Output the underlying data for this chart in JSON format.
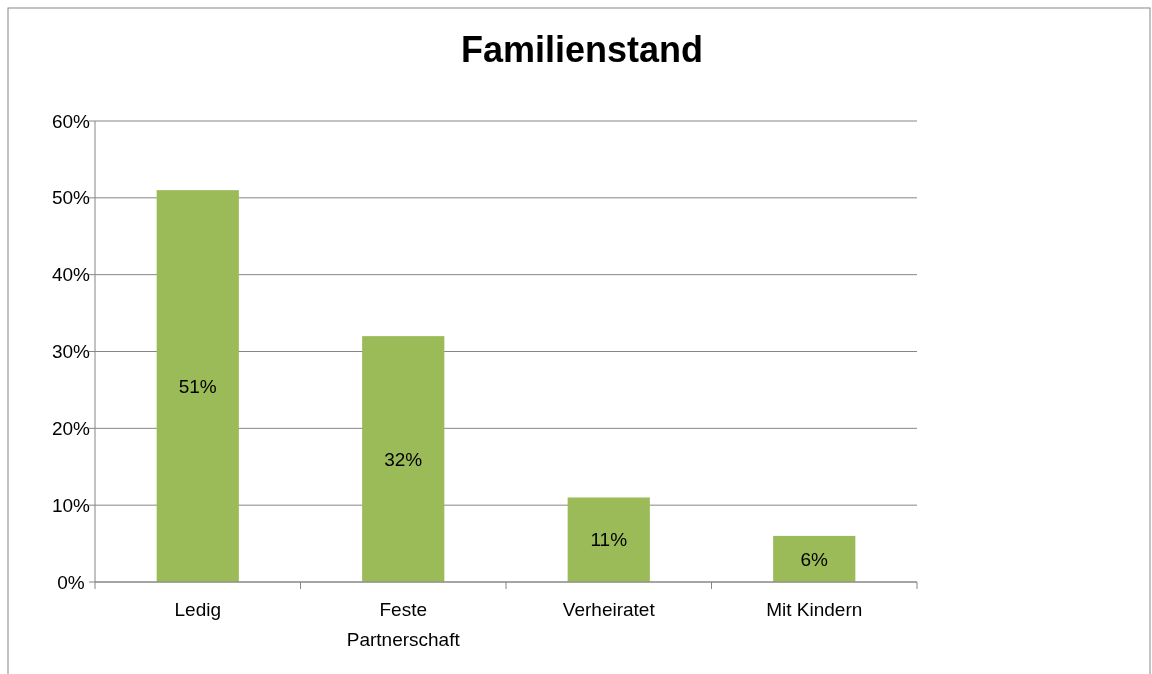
{
  "chart_data": {
    "type": "bar",
    "title": "Familienstand",
    "categories": [
      "Ledig",
      "Feste Partnerschaft",
      "Verheiratet",
      "Mit Kindern"
    ],
    "values": [
      51,
      32,
      11,
      6
    ],
    "value_labels": [
      "51%",
      "32%",
      "11%",
      "6%"
    ],
    "color": "#9bbb59",
    "ylim": [
      0,
      60
    ],
    "yticks": [
      {
        "value": 0,
        "label": "0%"
      },
      {
        "value": 10,
        "label": "10%"
      },
      {
        "value": 20,
        "label": "20%"
      },
      {
        "value": 30,
        "label": "30%"
      },
      {
        "value": 40,
        "label": "40%"
      },
      {
        "value": 50,
        "label": "50%"
      },
      {
        "value": 60,
        "label": "60%"
      }
    ],
    "grid": "y"
  }
}
